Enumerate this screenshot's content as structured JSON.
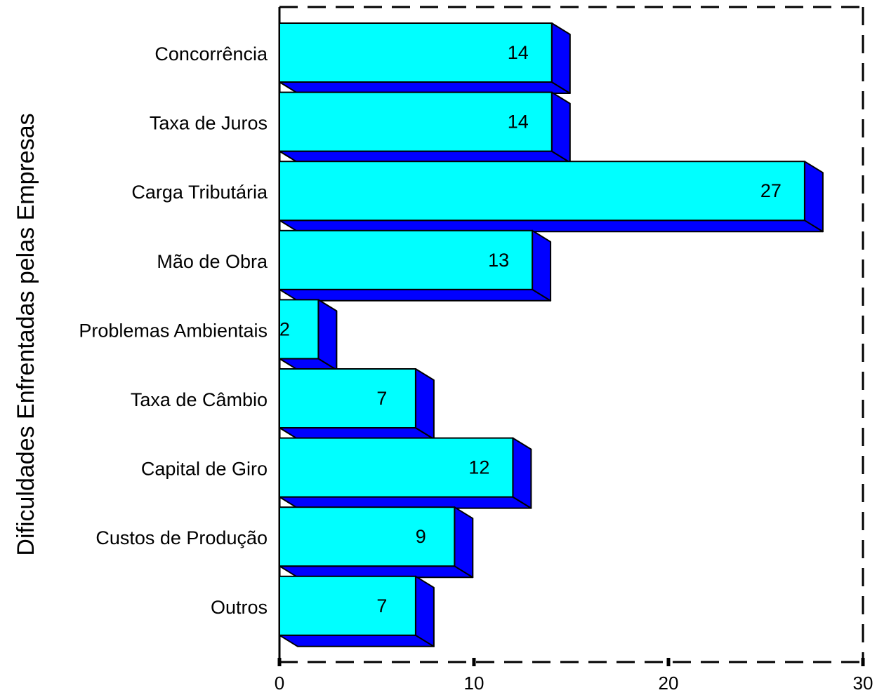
{
  "chart_data": {
    "type": "bar",
    "orientation": "horizontal",
    "style": "3d",
    "categories": [
      "Concorrência",
      "Taxa de Juros",
      "Carga Tributária",
      "Mão de Obra",
      "Problemas Ambientais",
      "Taxa de Câmbio",
      "Capital de Giro",
      "Custos de Produção",
      "Outros"
    ],
    "values": [
      14,
      14,
      27,
      13,
      2,
      7,
      12,
      9,
      7
    ],
    "title": "",
    "xlabel": "",
    "ylabel": "Dificuldades Enfrentadas pelas Empresas",
    "xlim": [
      0,
      30
    ],
    "xticks": [
      "0",
      "10",
      "20",
      "30"
    ],
    "grid": false,
    "legend": "none",
    "colors": {
      "bar_face": "#00FFFF",
      "bar_side": "#0000FF",
      "frame": "#000000"
    }
  }
}
